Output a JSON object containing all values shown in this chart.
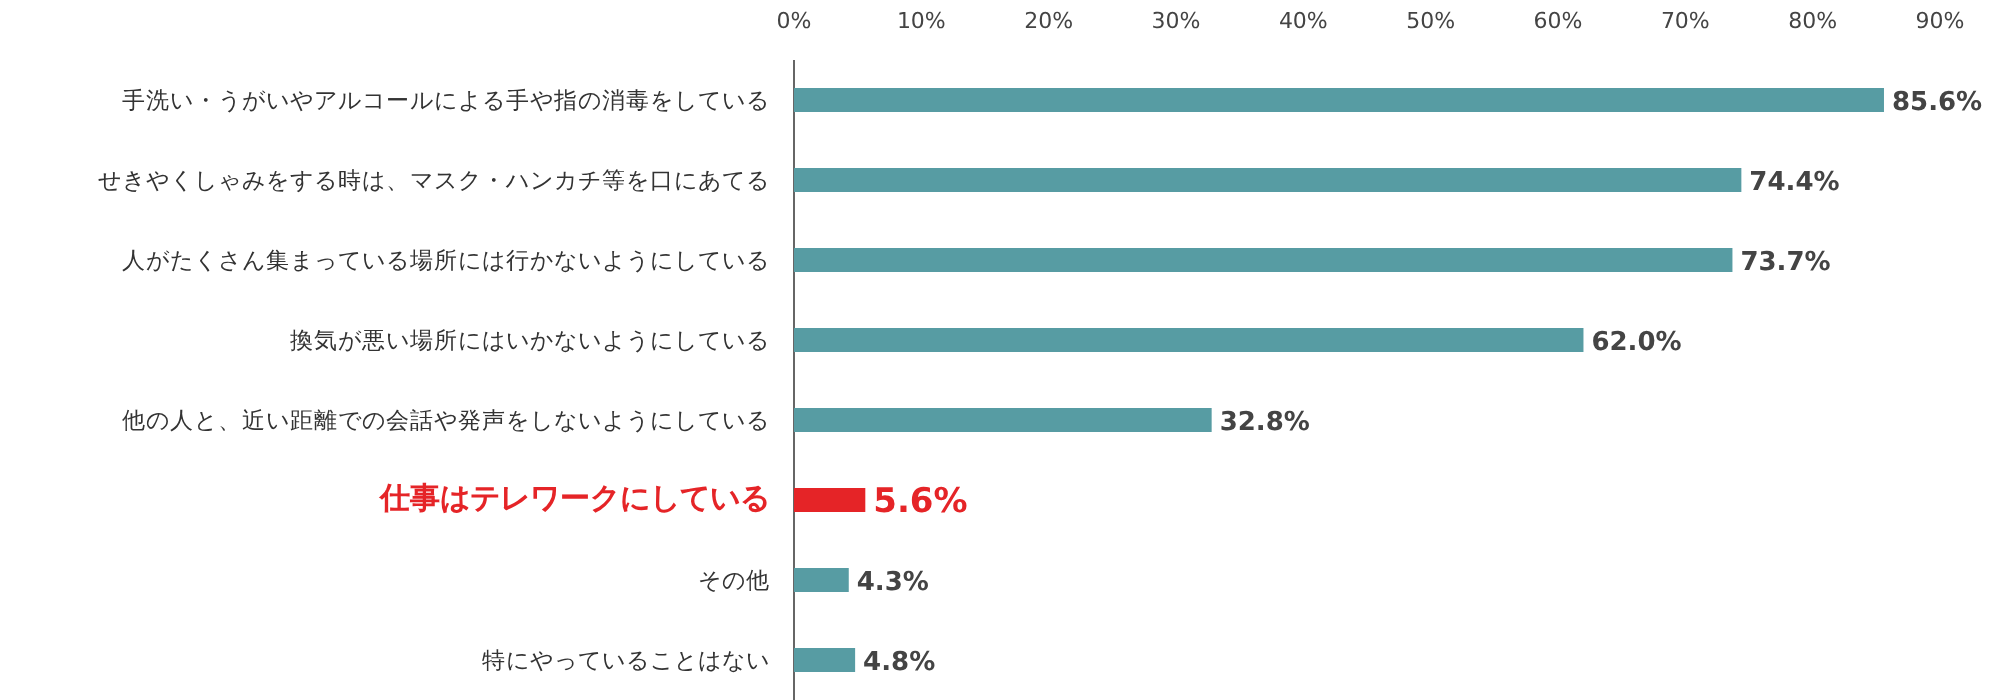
{
  "chart_data": {
    "type": "bar",
    "orientation": "horizontal",
    "categories": [
      "手洗い・うがいやアルコールによる手や指の消毒をしている",
      "せきやくしゃみをする時は、マスク・ハンカチ等を口にあてる",
      "人がたくさん集まっている場所には行かないようにしている",
      "換気が悪い場所にはいかないようにしている",
      "他の人と、近い距離での会話や発声をしないようにしている",
      "仕事はテレワークにしている",
      "その他",
      "特にやっていることはない"
    ],
    "values": [
      85.6,
      74.4,
      73.7,
      62.0,
      32.8,
      5.6,
      4.3,
      4.8
    ],
    "value_labels": [
      "85.6%",
      "74.4%",
      "73.7%",
      "62.0%",
      "32.8%",
      "5.6%",
      "4.3%",
      "4.8%"
    ],
    "color": "#579ca3",
    "colors": [
      "#579ca3",
      "#579ca3",
      "#579ca3",
      "#579ca3",
      "#579ca3",
      "#e52427",
      "#579ca3",
      "#579ca3"
    ],
    "xlim": [
      0,
      90
    ],
    "xticks": [
      {
        "value": 0,
        "label": "0%"
      },
      {
        "value": 10,
        "label": "10%"
      },
      {
        "value": 20,
        "label": "20%"
      },
      {
        "value": 30,
        "label": "30%"
      },
      {
        "value": 40,
        "label": "40%"
      },
      {
        "value": 50,
        "label": "50%"
      },
      {
        "value": 60,
        "label": "60%"
      },
      {
        "value": 70,
        "label": "70%"
      },
      {
        "value": 80,
        "label": "80%"
      },
      {
        "value": 90,
        "label": "90%"
      }
    ],
    "grid": false
  }
}
